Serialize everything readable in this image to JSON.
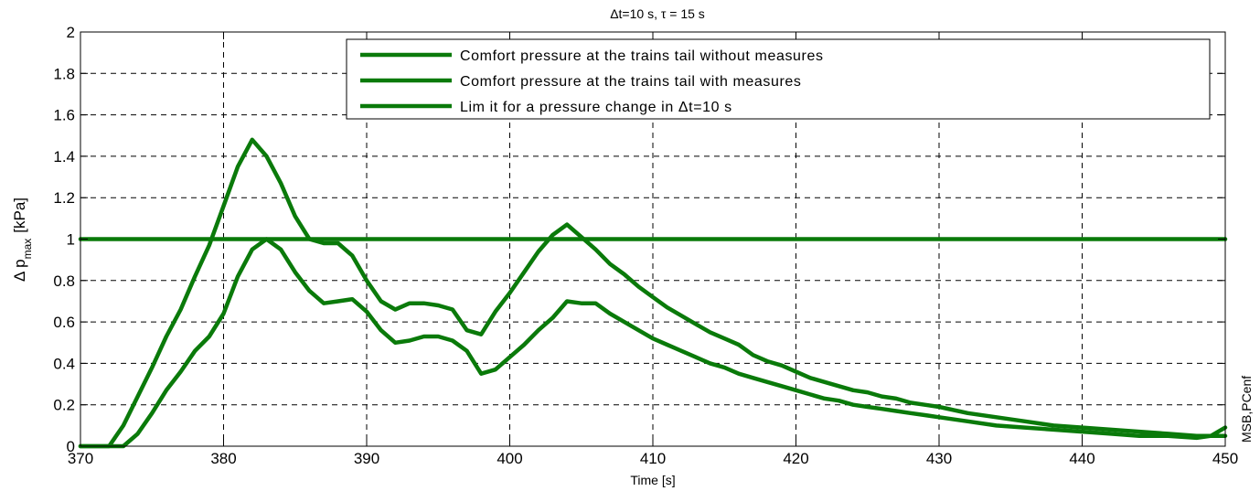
{
  "chart_data": {
    "type": "line",
    "title": "Δt=10 s,  τ = 15 s",
    "xlabel": "Time [s]",
    "ylabel": "Δ p",
    "ylabel_sub": "max",
    "ylabel_unit": "[kPa]",
    "side_label": "MSB,PCenf",
    "xlim": [
      370,
      450
    ],
    "ylim": [
      0,
      2
    ],
    "xticks": [
      370,
      380,
      390,
      400,
      410,
      420,
      430,
      440,
      450
    ],
    "yticks": [
      0,
      0.2,
      0.4,
      0.6,
      0.8,
      1,
      1.2,
      1.4,
      1.6,
      1.8,
      2
    ],
    "ytick_labels": [
      "0",
      "0.2",
      "0.4",
      "0.6",
      "0.8",
      "1",
      "1.2",
      "1.4",
      "1.6",
      "1.8",
      "2"
    ],
    "grid": true,
    "legend_position": "top-right",
    "line_color": "#0a7a0a",
    "series": [
      {
        "name": "Comfort pressure at the trains tail without measures",
        "x": [
          370,
          372,
          373,
          374,
          375,
          376,
          377,
          378,
          379,
          380,
          381,
          382,
          383,
          384,
          385,
          386,
          387,
          388,
          389,
          390,
          391,
          392,
          393,
          394,
          395,
          396,
          397,
          398,
          399,
          400,
          401,
          402,
          403,
          404,
          405,
          406,
          407,
          408,
          409,
          410,
          411,
          412,
          413,
          414,
          415,
          416,
          417,
          418,
          419,
          420,
          421,
          422,
          423,
          424,
          425,
          426,
          427,
          428,
          429,
          430,
          432,
          434,
          436,
          438,
          440,
          442,
          444,
          446,
          448,
          449,
          450
        ],
        "y": [
          0,
          0,
          0.1,
          0.24,
          0.38,
          0.53,
          0.66,
          0.82,
          0.97,
          1.16,
          1.35,
          1.48,
          1.4,
          1.27,
          1.11,
          1.0,
          0.98,
          0.98,
          0.92,
          0.8,
          0.7,
          0.66,
          0.69,
          0.69,
          0.68,
          0.66,
          0.56,
          0.54,
          0.65,
          0.74,
          0.84,
          0.94,
          1.02,
          1.07,
          1.01,
          0.95,
          0.88,
          0.83,
          0.77,
          0.72,
          0.67,
          0.63,
          0.59,
          0.55,
          0.52,
          0.49,
          0.44,
          0.41,
          0.39,
          0.36,
          0.33,
          0.31,
          0.29,
          0.27,
          0.26,
          0.24,
          0.23,
          0.21,
          0.2,
          0.19,
          0.16,
          0.14,
          0.12,
          0.1,
          0.09,
          0.08,
          0.07,
          0.06,
          0.05,
          0.05,
          0.05
        ]
      },
      {
        "name": "Comfort pressure at the trains tail with measures",
        "x": [
          370,
          373,
          374,
          375,
          376,
          377,
          378,
          379,
          380,
          381,
          382,
          383,
          384,
          385,
          386,
          387,
          388,
          389,
          390,
          391,
          392,
          393,
          394,
          395,
          396,
          397,
          398,
          399,
          400,
          401,
          402,
          403,
          404,
          405,
          406,
          407,
          408,
          409,
          410,
          411,
          412,
          413,
          414,
          415,
          416,
          417,
          418,
          419,
          420,
          421,
          422,
          423,
          424,
          425,
          426,
          427,
          428,
          429,
          430,
          432,
          434,
          436,
          438,
          440,
          442,
          444,
          446,
          448,
          449,
          450
        ],
        "y": [
          0,
          0,
          0.06,
          0.16,
          0.27,
          0.36,
          0.46,
          0.53,
          0.64,
          0.82,
          0.95,
          1.0,
          0.95,
          0.84,
          0.75,
          0.69,
          0.7,
          0.71,
          0.65,
          0.56,
          0.5,
          0.51,
          0.53,
          0.53,
          0.51,
          0.46,
          0.35,
          0.37,
          0.43,
          0.49,
          0.56,
          0.62,
          0.7,
          0.69,
          0.69,
          0.64,
          0.6,
          0.56,
          0.52,
          0.49,
          0.46,
          0.43,
          0.4,
          0.38,
          0.35,
          0.33,
          0.31,
          0.29,
          0.27,
          0.25,
          0.23,
          0.22,
          0.2,
          0.19,
          0.18,
          0.17,
          0.16,
          0.15,
          0.14,
          0.12,
          0.1,
          0.09,
          0.08,
          0.07,
          0.06,
          0.05,
          0.05,
          0.04,
          0.05,
          0.09
        ]
      },
      {
        "name": "Lim it for a pressure change in Δt=10 s",
        "x": [
          370,
          450
        ],
        "y": [
          1,
          1
        ]
      }
    ]
  }
}
